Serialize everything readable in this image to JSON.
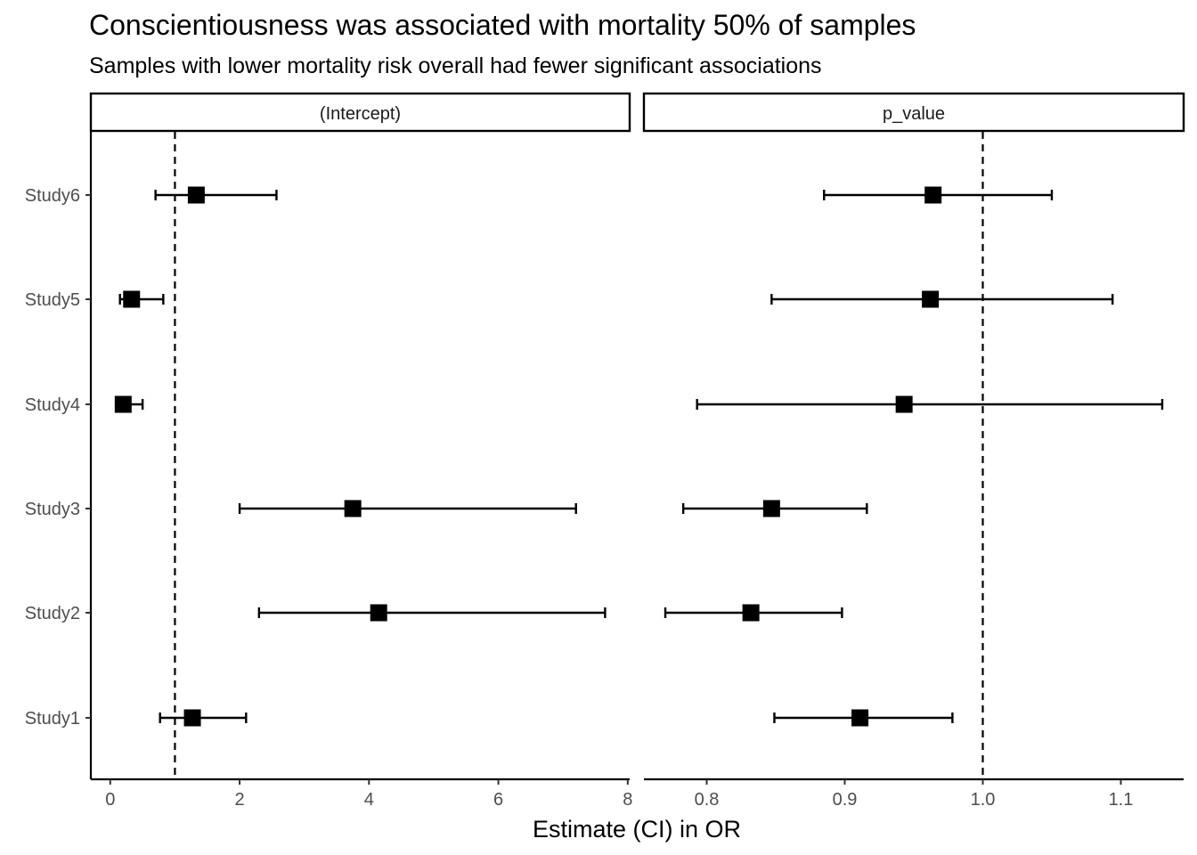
{
  "chart_data": {
    "type": "forest",
    "title": "Conscientiousness was associated with mortality 50% of samples",
    "subtitle": "Samples with lower mortality risk overall had fewer significant associations",
    "xlabel": "Estimate (CI) in OR",
    "categories": [
      "Study1",
      "Study2",
      "Study3",
      "Study4",
      "Study5",
      "Study6"
    ],
    "grid": false,
    "panels": [
      {
        "strip": "(Intercept)",
        "xlim": [
          -0.3,
          8.03
        ],
        "ticks": [
          0,
          2,
          4,
          6,
          8
        ],
        "tick_labels": [
          "0",
          "2",
          "4",
          "6",
          "8"
        ],
        "reference": 1,
        "points": [
          {
            "study": "Study1",
            "estimate": 1.27,
            "lower": 0.77,
            "upper": 2.1
          },
          {
            "study": "Study2",
            "estimate": 4.15,
            "lower": 2.3,
            "upper": 7.65
          },
          {
            "study": "Study3",
            "estimate": 3.75,
            "lower": 2.0,
            "upper": 7.2
          },
          {
            "study": "Study4",
            "estimate": 0.2,
            "lower": 0.1,
            "upper": 0.5
          },
          {
            "study": "Study5",
            "estimate": 0.33,
            "lower": 0.15,
            "upper": 0.82
          },
          {
            "study": "Study6",
            "estimate": 1.33,
            "lower": 0.7,
            "upper": 2.57
          }
        ]
      },
      {
        "strip": "p_value",
        "xlim": [
          0.7545,
          1.1455
        ],
        "ticks": [
          0.8,
          0.9,
          1.0,
          1.1
        ],
        "tick_labels": [
          "0.8",
          "0.9",
          "1.0",
          "1.1"
        ],
        "reference": 1,
        "points": [
          {
            "study": "Study1",
            "estimate": 0.911,
            "lower": 0.849,
            "upper": 0.978
          },
          {
            "study": "Study2",
            "estimate": 0.832,
            "lower": 0.77,
            "upper": 0.898
          },
          {
            "study": "Study3",
            "estimate": 0.847,
            "lower": 0.783,
            "upper": 0.916
          },
          {
            "study": "Study4",
            "estimate": 0.943,
            "lower": 0.793,
            "upper": 1.13
          },
          {
            "study": "Study5",
            "estimate": 0.962,
            "lower": 0.847,
            "upper": 1.094
          },
          {
            "study": "Study6",
            "estimate": 0.964,
            "lower": 0.885,
            "upper": 1.05
          }
        ]
      }
    ]
  }
}
